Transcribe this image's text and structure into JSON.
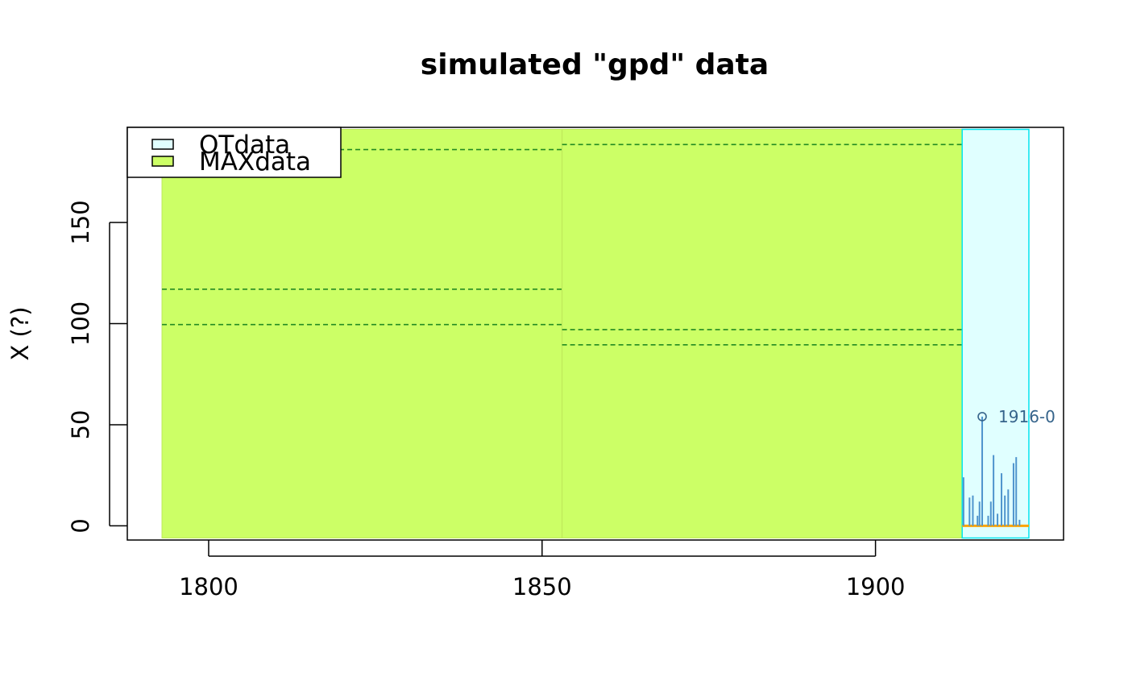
{
  "chart_data": {
    "type": "bar",
    "title": "simulated \"gpd\" data",
    "xlabel": "",
    "ylabel": "X (?)",
    "xlim": [
      1787.8,
      1928.2
    ],
    "ylim": [
      -7,
      197
    ],
    "x_ticks": [
      1800,
      1850,
      1900
    ],
    "y_ticks": [
      0,
      50,
      100,
      150
    ],
    "grid": false,
    "legend": {
      "position": "top-left",
      "entries": [
        {
          "label": "OTdata",
          "color": "#e0ffff"
        },
        {
          "label": "MAXdata",
          "color": "#ccff66"
        }
      ]
    },
    "blocks": [
      {
        "type": "MAXdata",
        "start": 1793,
        "end": 1853,
        "color": "#ccff66",
        "levels": [
          186,
          117,
          99.5
        ]
      },
      {
        "type": "MAXdata",
        "start": 1853,
        "end": 1913,
        "color": "#ccff66",
        "levels": [
          188.5,
          97,
          89.5
        ]
      },
      {
        "type": "OTdata",
        "start": 1913,
        "end": 1923,
        "color": "#e0ffff",
        "threshold": 0
      }
    ],
    "series": [
      {
        "x": [
          1913.2,
          1914.1,
          1914.6,
          1915.3,
          1915.6,
          1916.0,
          1916.9,
          1917.3,
          1917.7,
          1918.3,
          1918.9,
          1919.4,
          1919.9,
          1920.7,
          1921.1,
          1921.6
        ],
        "values": [
          24,
          14,
          15,
          5,
          12,
          54,
          5,
          12,
          35,
          6,
          26,
          15,
          18,
          31,
          34,
          3
        ]
      }
    ],
    "annotations": [
      {
        "text": "1916-0",
        "x": 1916.0,
        "y": 54
      }
    ],
    "colors": {
      "max_fill": "#ccff66",
      "ot_fill": "#e0ffff",
      "ot_border": "#00e5ee",
      "level_line": "#228b22",
      "event": "#4f94cd",
      "threshold": "#ffa500",
      "annot": "#36648b"
    }
  }
}
